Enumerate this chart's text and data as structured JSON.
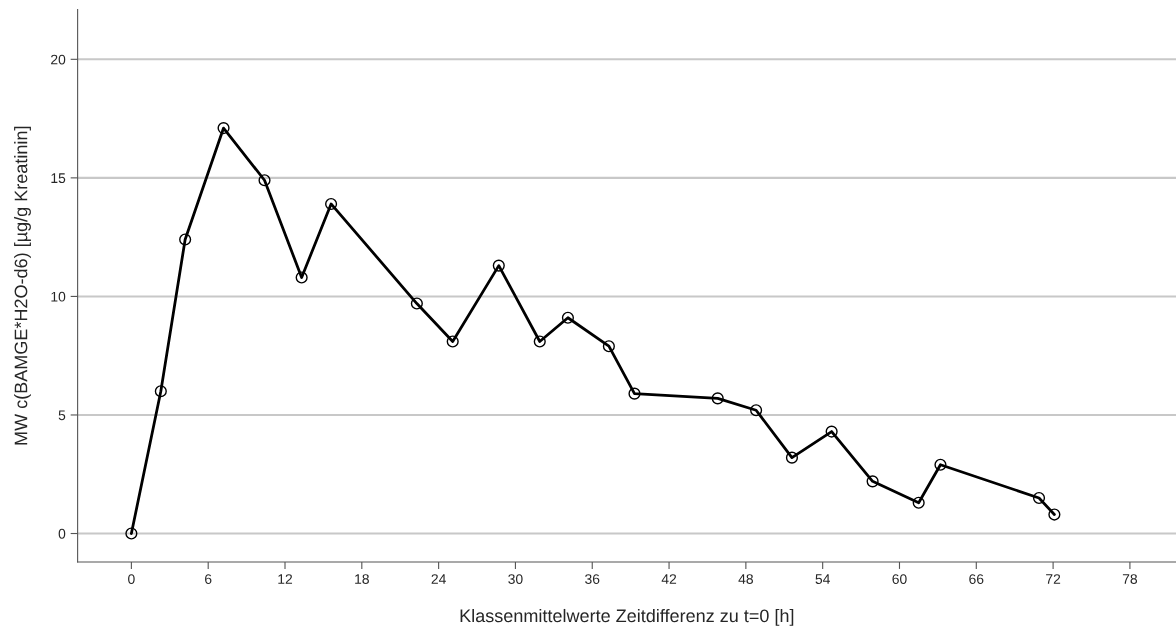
{
  "chart_data": {
    "type": "line",
    "xlabel": "Klassenmittelwerte Zeitdifferenz zu t=0 [h]",
    "ylabel": "MW c(BAMGE*H2O-d6) [µg/g Kreatinin]",
    "x": [
      0,
      2.3,
      4.2,
      7.2,
      10.4,
      13.3,
      15.6,
      22.3,
      25.1,
      28.7,
      31.9,
      34.1,
      37.3,
      39.3,
      45.8,
      48.8,
      51.6,
      54.7,
      57.9,
      61.5,
      63.2,
      70.9,
      72.1
    ],
    "series": [
      {
        "color": "#000000",
        "values": [
          0,
          6.0,
          12.4,
          17.1,
          14.9,
          10.8,
          13.9,
          9.7,
          8.1,
          11.3,
          8.1,
          9.1,
          7.9,
          5.9,
          5.7,
          5.2,
          3.2,
          4.3,
          2.2,
          1.3,
          2.9,
          1.5,
          0.8
        ]
      }
    ],
    "xlim": [
      -4.2,
      81.6
    ],
    "ylim": [
      -1.2,
      22.1
    ],
    "xticks": [
      0,
      6,
      12,
      18,
      24,
      30,
      36,
      42,
      48,
      54,
      60,
      66,
      72,
      78
    ],
    "yticks": [
      0,
      5,
      10,
      15,
      20
    ],
    "grid": "y",
    "marker": "circle",
    "line_style": "solid",
    "legend": false
  }
}
